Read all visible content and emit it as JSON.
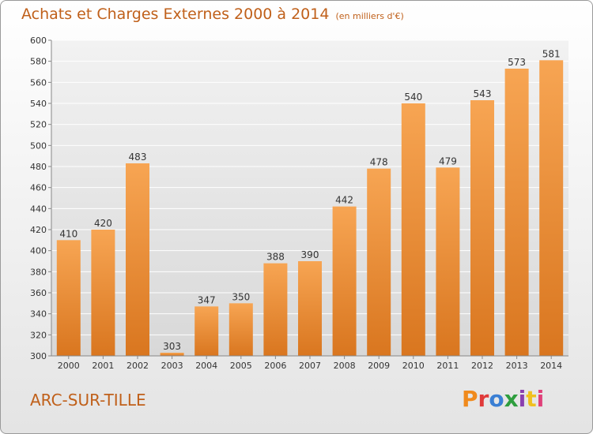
{
  "title": "Achats et Charges Externes 2000 à 2014",
  "subtitle": "(en milliers d'€)",
  "location": "ARC-SUR-TILLE",
  "logo": {
    "letters": [
      "P",
      "r",
      "o",
      "x",
      "i",
      "t",
      "i"
    ],
    "colors": [
      "#f08a1c",
      "#e03a3a",
      "#3a7fd4",
      "#2e9e3e",
      "#8a3fb0",
      "#f0c020",
      "#e0407a"
    ]
  },
  "chart_data": {
    "type": "bar",
    "title": "Achats et Charges Externes 2000 à 2014",
    "subtitle": "(en milliers d'€)",
    "categories": [
      "2000",
      "2001",
      "2002",
      "2003",
      "2004",
      "2005",
      "2006",
      "2007",
      "2008",
      "2009",
      "2010",
      "2011",
      "2012",
      "2013",
      "2014"
    ],
    "values": [
      410,
      420,
      483,
      303,
      347,
      350,
      388,
      390,
      442,
      478,
      540,
      479,
      543,
      573,
      581
    ],
    "ylim": [
      300,
      600
    ],
    "yticks": [
      300,
      320,
      340,
      360,
      380,
      400,
      420,
      440,
      460,
      480,
      500,
      520,
      540,
      560,
      580,
      600
    ],
    "grid": true,
    "bar_color": "#f08a2c"
  }
}
